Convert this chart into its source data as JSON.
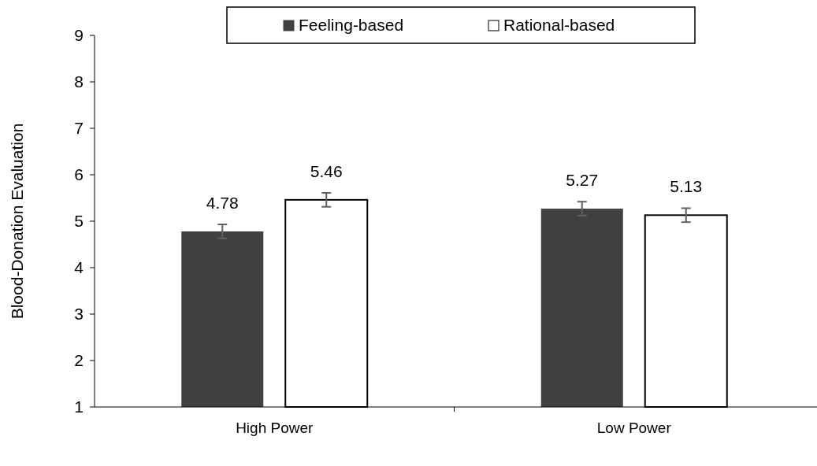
{
  "chart_data": {
    "type": "bar",
    "ylabel": "Blood-Donation Evaluation",
    "categories": [
      "High Power",
      "Low Power"
    ],
    "series": [
      {
        "name": "Feeling-based",
        "color": "#404040",
        "values": [
          4.78,
          5.27
        ],
        "errors": [
          0.15,
          0.15
        ]
      },
      {
        "name": "Rational-based",
        "color": "#ffffff",
        "values": [
          5.46,
          5.13
        ],
        "errors": [
          0.15,
          0.15
        ]
      }
    ],
    "ylim": [
      1,
      9
    ],
    "yticks": [
      1,
      2,
      3,
      4,
      5,
      6,
      7,
      8,
      9
    ],
    "data_labels": true,
    "legend": "top",
    "grid": false
  }
}
